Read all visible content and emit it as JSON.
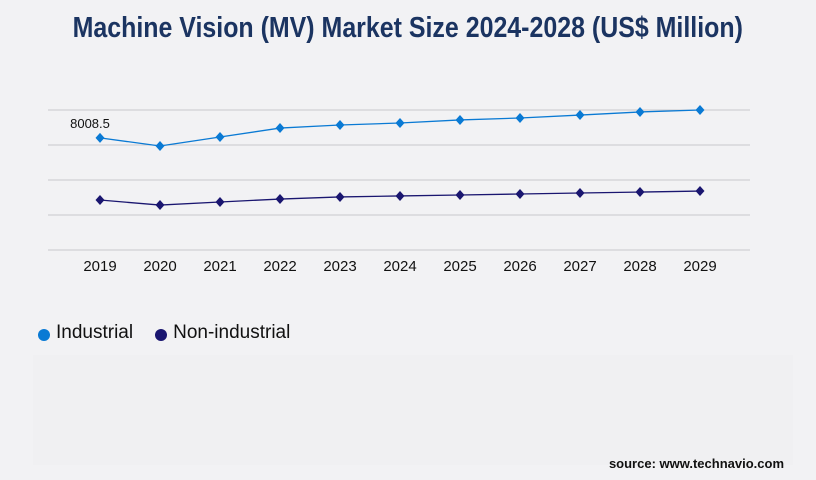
{
  "chart_data": {
    "type": "line",
    "title": "Machine Vision (MV) Market Size 2024-2028 (US$ Million)",
    "xlabel": "",
    "ylabel": "",
    "categories": [
      "2019",
      "2020",
      "2021",
      "2022",
      "2023",
      "2024",
      "2025",
      "2026",
      "2027",
      "2028",
      "2029"
    ],
    "ylim": [
      0,
      10000
    ],
    "gridlines": [
      0,
      2500,
      5000,
      7500,
      10000
    ],
    "grid": true,
    "y_tick_labels_shown": false,
    "legend_placement": "bottom-left",
    "series": [
      {
        "name": "Industrial",
        "color": "#0a7ad4",
        "values": [
          8008.5,
          7430,
          8070,
          8710,
          8930,
          9070,
          9290,
          9430,
          9640,
          9860,
          10000
        ]
      },
      {
        "name": "Non-industrial",
        "color": "#1a1670",
        "values": [
          3570,
          3210,
          3430,
          3640,
          3790,
          3860,
          3930,
          4000,
          4070,
          4140,
          4210
        ]
      }
    ],
    "annotations": [
      {
        "series": "Industrial",
        "category": "2019",
        "text": "8008.5"
      }
    ]
  },
  "source": "source: www.technavio.com"
}
